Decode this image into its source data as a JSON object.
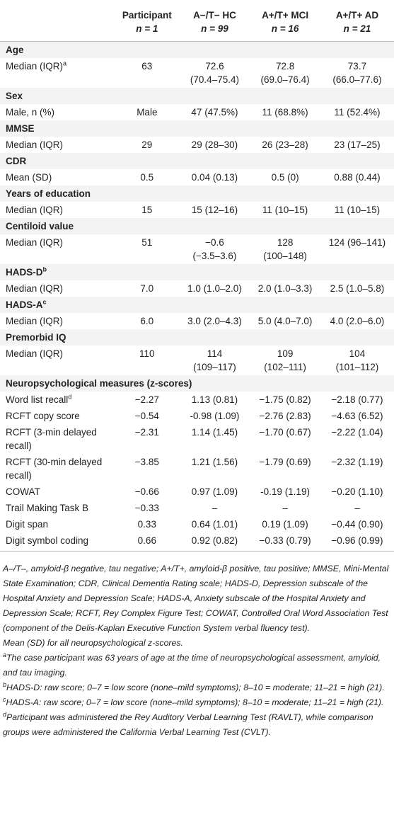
{
  "table": {
    "columns": [
      {
        "title": "Participant",
        "n": "n = 1"
      },
      {
        "title": "A−/T− HC",
        "n": "n = 99"
      },
      {
        "title": "A+/T+ MCI",
        "n": "n = 16"
      },
      {
        "title": "A+/T+ AD",
        "n": "n = 21"
      }
    ],
    "sections": [
      {
        "heading": "Age",
        "rows": [
          {
            "label": "Median (IQR)",
            "note": "a",
            "values": [
              "63",
              [
                "72.6",
                "(70.4–75.4)"
              ],
              [
                "72.8",
                "(69.0–76.4)"
              ],
              [
                "73.7",
                "(66.0–77.6)"
              ]
            ]
          }
        ]
      },
      {
        "heading": "Sex",
        "rows": [
          {
            "label": "Male, n (%)",
            "values": [
              "Male",
              "47 (47.5%)",
              "11 (68.8%)",
              "11 (52.4%)"
            ]
          }
        ]
      },
      {
        "heading": "MMSE",
        "rows": [
          {
            "label": "Median (IQR)",
            "values": [
              "29",
              "29 (28–30)",
              "26 (23–28)",
              "23 (17–25)"
            ]
          }
        ]
      },
      {
        "heading": "CDR",
        "rows": [
          {
            "label": "Mean (SD)",
            "values": [
              "0.5",
              "0.04 (0.13)",
              "0.5 (0)",
              "0.88 (0.44)"
            ]
          }
        ]
      },
      {
        "heading": "Years of education",
        "rows": [
          {
            "label": "Median (IQR)",
            "values": [
              "15",
              "15 (12–16)",
              "11 (10–15)",
              "11 (10–15)"
            ]
          }
        ]
      },
      {
        "heading": "Centiloid value",
        "rows": [
          {
            "label": "Median (IQR)",
            "values": [
              "51",
              [
                "−0.6",
                "(−3.5–3.6)"
              ],
              [
                "128",
                "(100–148)"
              ],
              "124 (96–141)"
            ]
          }
        ]
      },
      {
        "heading": "HADS-D",
        "heading_note": "b",
        "rows": [
          {
            "label": "Median (IQR)",
            "values": [
              "7.0",
              "1.0 (1.0–2.0)",
              "2.0 (1.0–3.3)",
              "2.5 (1.0–5.8)"
            ]
          }
        ]
      },
      {
        "heading": "HADS-A",
        "heading_note": "c",
        "rows": [
          {
            "label": "Median (IQR)",
            "values": [
              "6.0",
              "3.0 (2.0–4.3)",
              "5.0 (4.0–7.0)",
              "4.0 (2.0–6.0)"
            ]
          }
        ]
      },
      {
        "heading": "Premorbid IQ",
        "rows": [
          {
            "label": "Median (IQR)",
            "values": [
              "110",
              [
                "114",
                "(109–117)"
              ],
              [
                "109",
                "(102–111)"
              ],
              [
                "104",
                "(101–112)"
              ]
            ]
          }
        ]
      },
      {
        "heading": "Neuropsychological measures (z-scores)",
        "rows": [
          {
            "label": "Word list recall",
            "note": "d",
            "values": [
              "−2.27",
              "1.13 (0.81)",
              "−1.75 (0.82)",
              "−2.18 (0.77)"
            ]
          },
          {
            "label": "RCFT copy score",
            "values": [
              "−0.54",
              "-0.98 (1.09)",
              "−2.76 (2.83)",
              "−4.63 (6.52)"
            ]
          },
          {
            "label": [
              "RCFT (3-min delayed",
              "recall)"
            ],
            "values": [
              "−2.31",
              "1.14 (1.45)",
              "−1.70 (0.67)",
              "−2.22 (1.04)"
            ]
          },
          {
            "label": [
              "RCFT (30-min delayed",
              "recall)"
            ],
            "values": [
              "−3.85",
              "1.21 (1.56)",
              "−1.79 (0.69)",
              "−2.32 (1.19)"
            ]
          },
          {
            "label": "COWAT",
            "values": [
              "−0.66",
              "0.97 (1.09)",
              "-0.19 (1.19)",
              "−0.20 (1.10)"
            ]
          },
          {
            "label": "Trail Making Task B",
            "values": [
              "−0.33",
              "–",
              "–",
              "–"
            ]
          },
          {
            "label": "Digit span",
            "values": [
              "0.33",
              "0.64 (1.01)",
              "0.19 (1.09)",
              "−0.44 (0.90)"
            ]
          },
          {
            "label": "Digit symbol coding",
            "values": [
              "0.66",
              "0.92 (0.82)",
              "−0.33 (0.79)",
              "−0.96 (0.99)"
            ]
          }
        ]
      }
    ]
  },
  "footnotes": [
    {
      "text": "A–/T–, amyloid-β negative, tau negative; A+/T+, amyloid-β positive, tau positive; MMSE, Mini-Mental State Examination; CDR, Clinical Dementia Rating scale; HADS-D, Depression subscale of the Hospital Anxiety and Depression Scale; HADS-A, Anxiety subscale of the Hospital Anxiety and Depression Scale; RCFT, Rey Complex Figure Test; COWAT, Controlled Oral Word Association Test (component of the Delis-Kaplan Executive Function System verbal fluency test)."
    },
    {
      "text": "Mean (SD) for all neuropsychological z-scores."
    },
    {
      "mark": "a",
      "text": "The case participant was 63 years of age at the time of neuropsychological assessment, amyloid, and tau imaging."
    },
    {
      "mark": "b",
      "text": "HADS-D: raw score; 0–7 = low score (none–mild symptoms); 8–10 = moderate; 11–21 = high (21)."
    },
    {
      "mark": "c",
      "text": "HADS-A: raw score; 0–7 = low score (none–mild symptoms); 8–10 = moderate; 11–21 = high (21)."
    },
    {
      "mark": "d",
      "text": "Participant was administered the Rey Auditory Verbal Learning Test (RAVLT), while comparison groups were administered the California Verbal Learning Test (CVLT)."
    }
  ]
}
